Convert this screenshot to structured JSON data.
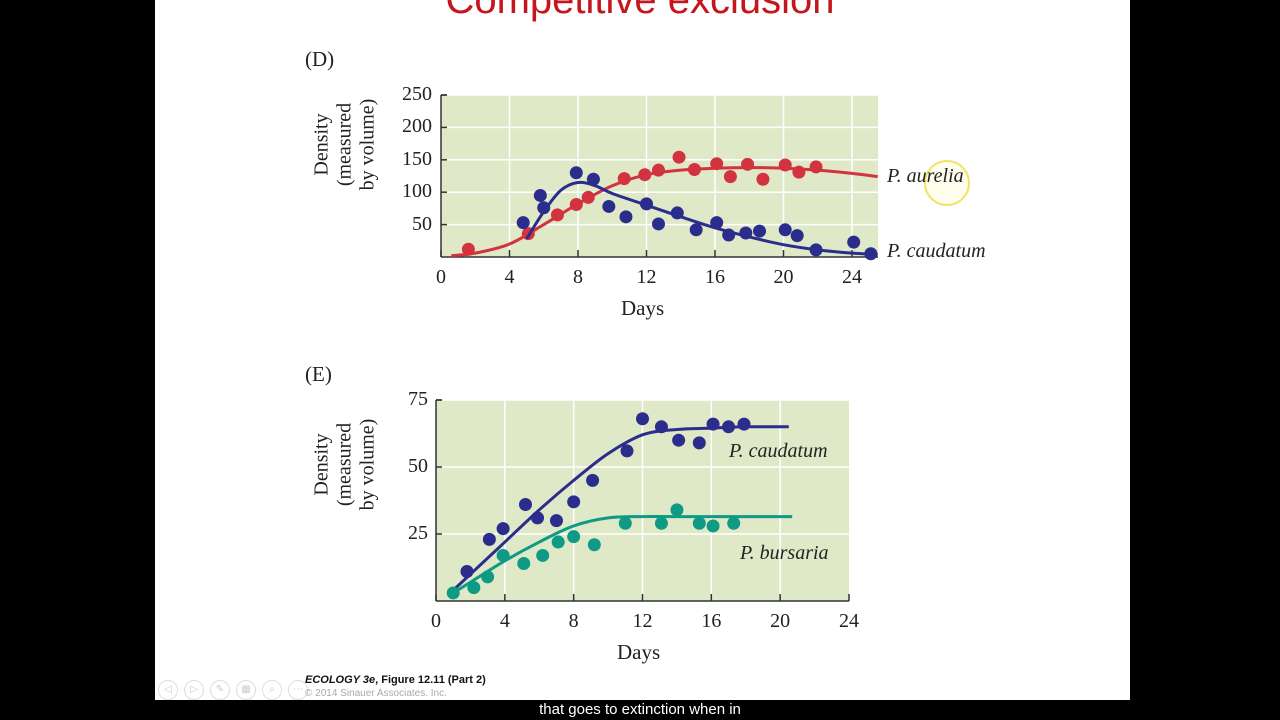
{
  "slide": {
    "title": "Competitive exclusion",
    "footer_italic": "ECOLOGY 3e",
    "footer_rest": ", Figure 12.11 (Part 2)",
    "copyright": "© 2014 Sinauer Associates, Inc.",
    "caption": "that goes to extinction when in",
    "nav_icons": [
      "prev-icon",
      "next-icon",
      "pen-icon",
      "slides-icon",
      "zoom-icon",
      "more-icon"
    ]
  },
  "colors": {
    "red": "#d3333f",
    "blue": "#2b2d8c",
    "green": "#0e9a85",
    "plot_bg": "#dfe9c8",
    "title": "#c4161c"
  },
  "chart_data": [
    {
      "panel": "(D)",
      "type": "scatter",
      "xlabel": "Days",
      "ylabel_lines": [
        "Density",
        "(measured",
        "by volume)"
      ],
      "xlim": [
        0,
        25.5
      ],
      "ylim": [
        0,
        250
      ],
      "xticks": [
        "0",
        "4",
        "8",
        "12",
        "16",
        "20",
        "24"
      ],
      "yticks": [
        "50",
        "100",
        "150",
        "200",
        "250"
      ],
      "grid": true,
      "series": [
        {
          "name": "P. aurelia",
          "color": "red",
          "points": [
            [
              1.6,
              12
            ],
            [
              5.1,
              36
            ],
            [
              6.8,
              65
            ],
            [
              7.9,
              81
            ],
            [
              8.6,
              92
            ],
            [
              10.7,
              121
            ],
            [
              11.9,
              127
            ],
            [
              12.7,
              134
            ],
            [
              13.9,
              154
            ],
            [
              14.8,
              135
            ],
            [
              16.1,
              144
            ],
            [
              16.9,
              124
            ],
            [
              17.9,
              143
            ],
            [
              18.8,
              120
            ],
            [
              20.1,
              142
            ],
            [
              20.9,
              131
            ],
            [
              21.9,
              139
            ]
          ],
          "curve": [
            [
              0.6,
              2
            ],
            [
              2,
              6
            ],
            [
              4,
              20
            ],
            [
              6,
              50
            ],
            [
              8,
              82
            ],
            [
              10,
              110
            ],
            [
              12,
              127
            ],
            [
              14,
              134
            ],
            [
              16,
              137
            ],
            [
              18,
              138
            ],
            [
              20,
              137
            ],
            [
              22,
              134
            ],
            [
              24,
              129
            ],
            [
              25.5,
              124
            ]
          ]
        },
        {
          "name": "P. caudatum",
          "color": "blue",
          "points": [
            [
              4.8,
              53
            ],
            [
              5.8,
              95
            ],
            [
              6.0,
              76
            ],
            [
              7.9,
              130
            ],
            [
              8.9,
              120
            ],
            [
              9.8,
              78
            ],
            [
              10.8,
              62
            ],
            [
              12.0,
              82
            ],
            [
              12.7,
              51
            ],
            [
              13.8,
              68
            ],
            [
              14.9,
              42
            ],
            [
              16.1,
              53
            ],
            [
              16.8,
              34
            ],
            [
              17.8,
              37
            ],
            [
              18.6,
              40
            ],
            [
              20.1,
              42
            ],
            [
              20.8,
              33
            ],
            [
              21.9,
              11
            ],
            [
              24.1,
              23
            ],
            [
              25.1,
              5
            ]
          ],
          "curve": [
            [
              5,
              28
            ],
            [
              6,
              70
            ],
            [
              7,
              103
            ],
            [
              8,
              115
            ],
            [
              9,
              110
            ],
            [
              10,
              98
            ],
            [
              12,
              80
            ],
            [
              14,
              62
            ],
            [
              16,
              45
            ],
            [
              18,
              31
            ],
            [
              20,
              19
            ],
            [
              22,
              11
            ],
            [
              24,
              6
            ],
            [
              25.5,
              4
            ]
          ]
        }
      ]
    },
    {
      "panel": "(E)",
      "type": "scatter",
      "xlabel": "Days",
      "ylabel_lines": [
        "Density",
        "(measured",
        "by volume)"
      ],
      "xlim": [
        0,
        24
      ],
      "ylim": [
        0,
        75
      ],
      "xticks": [
        "0",
        "4",
        "8",
        "12",
        "16",
        "20",
        "24"
      ],
      "yticks": [
        "25",
        "50",
        "75"
      ],
      "grid": true,
      "series": [
        {
          "name": "P. caudatum",
          "color": "blue",
          "points": [
            [
              1.8,
              11
            ],
            [
              3.1,
              23
            ],
            [
              3.9,
              27
            ],
            [
              5.2,
              36
            ],
            [
              5.9,
              31
            ],
            [
              7.0,
              30
            ],
            [
              8.0,
              37
            ],
            [
              9.1,
              45
            ],
            [
              11.1,
              56
            ],
            [
              12.0,
              68
            ],
            [
              13.1,
              65
            ],
            [
              14.1,
              60
            ],
            [
              15.3,
              59
            ],
            [
              16.1,
              66
            ],
            [
              17.0,
              65
            ],
            [
              17.9,
              66
            ]
          ],
          "curve": [
            [
              1,
              4
            ],
            [
              2,
              10
            ],
            [
              4,
              22
            ],
            [
              6,
              34
            ],
            [
              8,
              45
            ],
            [
              10,
              55
            ],
            [
              12,
              62
            ],
            [
              14,
              64
            ],
            [
              16,
              64.5
            ],
            [
              18,
              65
            ],
            [
              20.5,
              65
            ]
          ]
        },
        {
          "name": "P. bursaria",
          "color": "green",
          "points": [
            [
              1.0,
              3
            ],
            [
              2.2,
              5
            ],
            [
              3.0,
              9
            ],
            [
              3.9,
              17
            ],
            [
              5.1,
              14
            ],
            [
              6.2,
              17
            ],
            [
              7.1,
              22
            ],
            [
              8.0,
              24
            ],
            [
              9.2,
              21
            ],
            [
              11.0,
              29
            ],
            [
              13.1,
              29
            ],
            [
              14.0,
              34
            ],
            [
              15.3,
              29
            ],
            [
              16.1,
              28
            ],
            [
              17.3,
              29
            ]
          ],
          "curve": [
            [
              1,
              3
            ],
            [
              2,
              7
            ],
            [
              4,
              15
            ],
            [
              6,
              22
            ],
            [
              8,
              28
            ],
            [
              10,
              31
            ],
            [
              12,
              31.5
            ],
            [
              14,
              31.5
            ],
            [
              20.7,
              31.5
            ]
          ]
        }
      ]
    }
  ]
}
